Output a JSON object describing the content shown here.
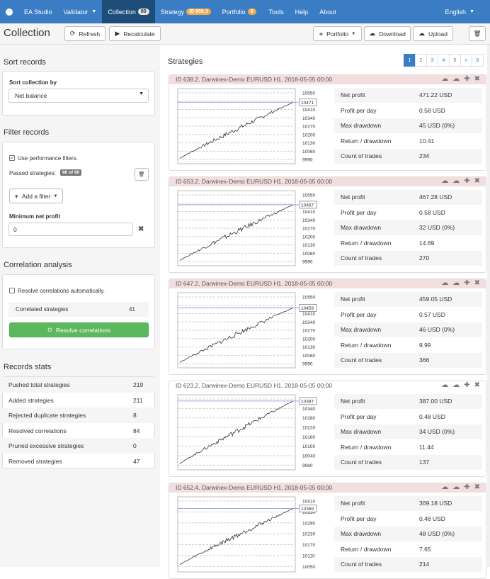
{
  "nav": {
    "home_icon": "power-circle-icon",
    "app_name": "EA Studio",
    "validator": "Validator",
    "collection": "Collection",
    "collection_count": "80",
    "strategy": "Strategy",
    "strategy_id": "ID 609.3",
    "portfolio": "Portfolio",
    "portfolio_count": "0",
    "tools": "Tools",
    "help": "Help",
    "about": "About",
    "language": "English"
  },
  "toolbar": {
    "title": "Collection",
    "refresh": "Refresh",
    "recalculate": "Recalculate",
    "portfolio": "Portfolio",
    "download": "Download",
    "upload": "Upload"
  },
  "sort": {
    "title": "Sort records",
    "label": "Sort collection by",
    "value": "Net balance"
  },
  "filter": {
    "title": "Filter records",
    "use_filters": "Use performance filters.",
    "passed_label": "Passed strategies:",
    "passed_badge": "80 of 80",
    "add_filter": "Add a filter",
    "min_profit_label": "Minimum net profit",
    "min_profit_value": "0"
  },
  "correlation": {
    "title": "Correlation analysis",
    "auto_label": "Resolve correlations automatically.",
    "correlated_label": "Correlated strategies",
    "correlated_value": "41",
    "resolve_button": "Resolve correlations"
  },
  "stats": {
    "title": "Records stats",
    "rows": [
      {
        "label": "Pushed total strategies",
        "value": "219"
      },
      {
        "label": "Added strategies",
        "value": "211"
      },
      {
        "label": "Rejected duplicate strategies",
        "value": "8"
      },
      {
        "label": "Resolved correlations",
        "value": "84"
      },
      {
        "label": "Pruned excessive strategies",
        "value": "0"
      },
      {
        "label": "Removed strategies",
        "value": "47"
      }
    ]
  },
  "strategies": {
    "title": "Strategies",
    "pages": [
      "1",
      "2",
      "3",
      "4",
      "5",
      "»",
      "8"
    ],
    "metric_labels": [
      "Net profit",
      "Profit per day",
      "Max drawdown",
      "Return / drawdown",
      "Count of trades"
    ],
    "cards": [
      {
        "title": "ID 638.2, Darwinex-Demo EURUSD H1, 2018-05-05 00:00",
        "highlight": true,
        "ticks": [
          "10550",
          "10480",
          "10410",
          "10340",
          "10270",
          "10200",
          "10130",
          "10060",
          "9990"
        ],
        "final": "10471",
        "metrics": [
          "471.22 USD",
          "0.58 USD",
          "45 USD (0%)",
          "10.41",
          "234"
        ]
      },
      {
        "title": "ID 653.2, Darwinex-Demo EURUSD H1, 2018-05-05 00:00",
        "highlight": true,
        "ticks": [
          "10550",
          "10480",
          "10410",
          "10340",
          "10270",
          "10200",
          "10130",
          "10060",
          "9990"
        ],
        "final": "10467",
        "metrics": [
          "467.28 USD",
          "0.58 USD",
          "32 USD (0%)",
          "14.69",
          "270"
        ]
      },
      {
        "title": "ID 647.2, Darwinex-Demo EURUSD H1, 2018-05-05 00:00",
        "highlight": true,
        "ticks": [
          "10550",
          "10480",
          "10410",
          "10340",
          "10270",
          "10200",
          "10130",
          "10060",
          "9990"
        ],
        "final": "10459",
        "metrics": [
          "459.05 USD",
          "0.57 USD",
          "46 USD (0%)",
          "9.99",
          "366"
        ]
      },
      {
        "title": "ID 623.2, Darwinex-Demo EURUSD H1, 2018-05-05 00:00",
        "highlight": false,
        "ticks": [
          "10400",
          "10340",
          "10280",
          "10220",
          "10160",
          "10100",
          "10040",
          "9980"
        ],
        "final": "10387",
        "metrics": [
          "387.00 USD",
          "0.48 USD",
          "34 USD (0%)",
          "11.44",
          "137"
        ]
      },
      {
        "title": "ID 652.4, Darwinex-Demo EURUSD H1, 2018-05-05 00:00",
        "highlight": true,
        "ticks": [
          "10410",
          "10350",
          "10290",
          "10230",
          "10170",
          "10110",
          "10050"
        ],
        "final": "10369",
        "metrics": [
          "369.18 USD",
          "0.46 USD",
          "48 USD (0%)",
          "7.65",
          "214"
        ]
      }
    ]
  }
}
